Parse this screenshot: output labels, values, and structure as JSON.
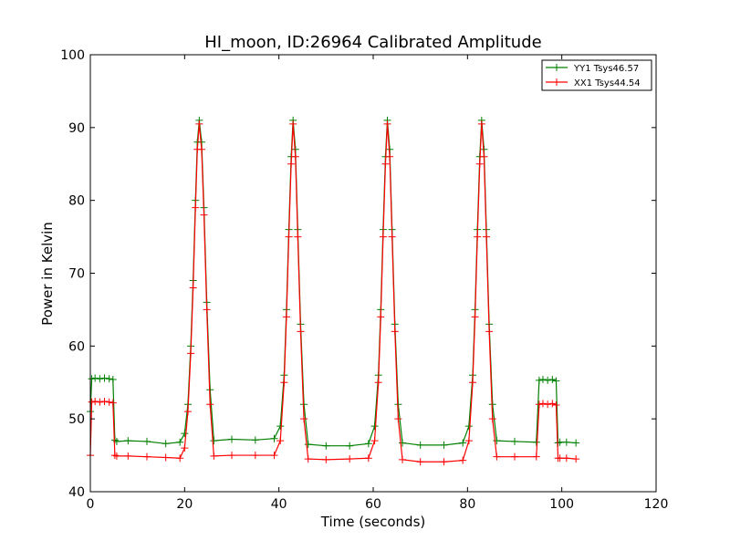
{
  "chart_data": {
    "type": "line",
    "title": "HI_moon, ID:26964 Calibrated Amplitude",
    "xlabel": "Time (seconds)",
    "ylabel": "Power in Kelvin",
    "xlim": [
      0,
      120
    ],
    "ylim": [
      40,
      100
    ],
    "xticks": [
      0,
      20,
      40,
      60,
      80,
      100,
      120
    ],
    "yticks": [
      40,
      50,
      60,
      70,
      80,
      90,
      100
    ],
    "grid": false,
    "legend_position": "top-right",
    "marker": "+",
    "series": [
      {
        "name": "YY1 Tsys46.57",
        "color": "#008000",
        "x": [
          0,
          0.3,
          1,
          2,
          3,
          4,
          4.8,
          5.2,
          5.6,
          8,
          12,
          16,
          19,
          20,
          20.7,
          21.3,
          21.8,
          22.3,
          22.7,
          23.1,
          23.6,
          24.1,
          24.7,
          25.4,
          26.2,
          30,
          35,
          39,
          40.3,
          41.1,
          41.6,
          42.1,
          42.6,
          43,
          43.5,
          44,
          44.6,
          45.3,
          46.2,
          50,
          55,
          59,
          60.3,
          61.1,
          61.6,
          62.1,
          62.6,
          63,
          63.5,
          64,
          64.6,
          65.3,
          66.2,
          70,
          75,
          79,
          80.3,
          81.1,
          81.6,
          82.1,
          82.6,
          83,
          83.5,
          84,
          84.6,
          85.3,
          86.2,
          90,
          94.6,
          95.2,
          96,
          97,
          98,
          98.8,
          99.2,
          99.6,
          101,
          103
        ],
        "values": [
          51,
          55.5,
          55.6,
          55.5,
          55.6,
          55.5,
          55.4,
          47.1,
          46.9,
          47.0,
          46.9,
          46.6,
          46.8,
          48,
          52,
          60,
          69,
          80,
          88,
          91,
          88,
          79,
          66,
          54,
          47.0,
          47.2,
          47.1,
          47.3,
          49,
          56,
          65,
          76,
          86,
          91,
          87,
          76,
          63,
          52,
          46.5,
          46.3,
          46.3,
          46.6,
          49,
          56,
          65,
          76,
          86,
          91,
          87,
          76,
          63,
          52,
          46.7,
          46.4,
          46.4,
          46.7,
          49,
          56,
          65,
          76,
          86,
          91,
          87,
          76,
          63,
          52,
          47.0,
          46.9,
          46.8,
          55.3,
          55.4,
          55.3,
          55.4,
          55.2,
          46.7,
          46.8,
          46.8,
          46.7
        ]
      },
      {
        "name": "XX1 Tsys44.54",
        "color": "#ff0000",
        "x": [
          0,
          0.3,
          1,
          2,
          3,
          4,
          4.8,
          5.2,
          5.6,
          8,
          12,
          16,
          19,
          20,
          20.7,
          21.3,
          21.8,
          22.3,
          22.7,
          23.1,
          23.6,
          24.1,
          24.7,
          25.4,
          26.2,
          30,
          35,
          39,
          40.3,
          41.1,
          41.6,
          42.1,
          42.6,
          43,
          43.5,
          44,
          44.6,
          45.3,
          46.2,
          50,
          55,
          59,
          60.3,
          61.1,
          61.6,
          62.1,
          62.6,
          63,
          63.5,
          64,
          64.6,
          65.3,
          66.2,
          70,
          75,
          79,
          80.3,
          81.1,
          81.6,
          82.1,
          82.6,
          83,
          83.5,
          84,
          84.6,
          85.3,
          86.2,
          90,
          94.6,
          95.2,
          96,
          97,
          98,
          98.8,
          99.2,
          99.6,
          101,
          103
        ],
        "values": [
          45,
          52.3,
          52.4,
          52.3,
          52.4,
          52.3,
          52.2,
          45.0,
          44.9,
          44.9,
          44.8,
          44.7,
          44.6,
          46,
          51,
          59,
          68,
          79,
          87,
          90.5,
          87,
          78,
          65,
          52,
          44.9,
          45.0,
          45.0,
          45.0,
          47,
          55,
          64,
          75,
          85,
          90.5,
          86,
          75,
          62,
          50,
          44.5,
          44.4,
          44.5,
          44.6,
          47,
          55,
          64,
          75,
          85,
          90.5,
          86,
          75,
          62,
          50,
          44.4,
          44.1,
          44.1,
          44.3,
          47,
          55,
          64,
          75,
          85,
          90.5,
          86,
          75,
          62,
          50,
          44.8,
          44.8,
          44.8,
          52.0,
          52.1,
          52.0,
          52.1,
          51.9,
          44.6,
          44.6,
          44.6,
          44.5
        ]
      }
    ]
  }
}
